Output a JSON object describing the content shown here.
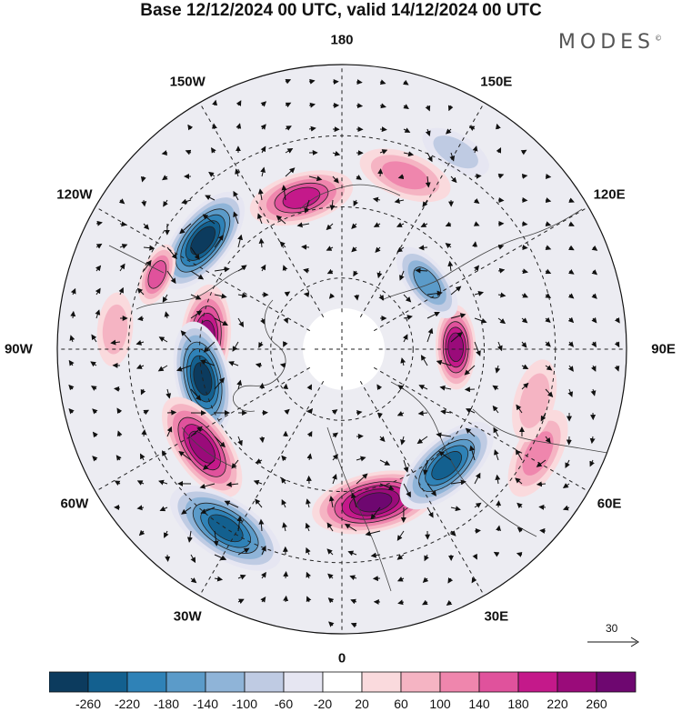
{
  "title": "Base 12/12/2024 00 UTC, valid 14/12/2024 00 UTC",
  "logo": "MODES",
  "logo_mark": "©",
  "longitude_labels": [
    {
      "text": "180",
      "lon": 180
    },
    {
      "text": "150E",
      "lon": 150
    },
    {
      "text": "120E",
      "lon": 120
    },
    {
      "text": "90E",
      "lon": 90
    },
    {
      "text": "60E",
      "lon": 60
    },
    {
      "text": "30E",
      "lon": 30
    },
    {
      "text": "0",
      "lon": 0
    },
    {
      "text": "30W",
      "lon": -30
    },
    {
      "text": "60W",
      "lon": -60
    },
    {
      "text": "90W",
      "lon": -90
    },
    {
      "text": "120W",
      "lon": -120
    },
    {
      "text": "150W",
      "lon": -150
    }
  ],
  "reference_vector": {
    "label": "30"
  },
  "colorbar": {
    "colors": [
      "#0c3b5e",
      "#13608f",
      "#2f82b7",
      "#5b9bc9",
      "#8fb4d8",
      "#bfcbe3",
      "#e6e6f2",
      "#ffffff",
      "#fadadd",
      "#f5b4c3",
      "#ef86ad",
      "#e0529c",
      "#c4198a",
      "#9a0b7a",
      "#6e0770"
    ],
    "tick_labels": [
      "-260",
      "-220",
      "-180",
      "-140",
      "-100",
      "-60",
      "-20",
      "20",
      "60",
      "100",
      "140",
      "180",
      "220",
      "260"
    ]
  },
  "map_data": {
    "projection": "north-polar-stereographic",
    "anomalies": [
      {
        "lon": -128,
        "colat": 0.62,
        "value": -270,
        "size": 1.0
      },
      {
        "lon": -165,
        "colat": 0.55,
        "value": 170,
        "size": 0.9
      },
      {
        "lon": -95,
        "colat": 0.48,
        "value": 240,
        "size": 0.9
      },
      {
        "lon": -112,
        "colat": 0.7,
        "value": 140,
        "size": 0.5
      },
      {
        "lon": -78,
        "colat": 0.5,
        "value": -250,
        "size": 1.0
      },
      {
        "lon": -55,
        "colat": 0.6,
        "value": 230,
        "size": 1.0
      },
      {
        "lon": -33,
        "colat": 0.75,
        "value": -220,
        "size": 1.1
      },
      {
        "lon": 12,
        "colat": 0.55,
        "value": 270,
        "size": 1.1
      },
      {
        "lon": 42,
        "colat": 0.55,
        "value": -240,
        "size": 1.0
      },
      {
        "lon": 91,
        "colat": 0.4,
        "value": 230,
        "size": 0.7
      },
      {
        "lon": 128,
        "colat": 0.38,
        "value": -130,
        "size": 0.7
      },
      {
        "lon": 62,
        "colat": 0.78,
        "value": 90,
        "size": 0.8
      },
      {
        "lon": 75,
        "colat": 0.7,
        "value": 80,
        "size": 0.7
      },
      {
        "lon": 160,
        "colat": 0.65,
        "value": 90,
        "size": 0.8
      },
      {
        "lon": -95,
        "colat": 0.8,
        "value": 60,
        "size": 0.6
      },
      {
        "lon": 150,
        "colat": 0.8,
        "value": -50,
        "size": 0.6
      }
    ]
  }
}
